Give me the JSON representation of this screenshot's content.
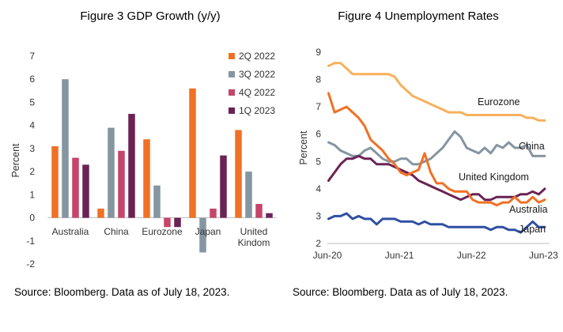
{
  "chart_data": [
    {
      "type": "bar",
      "title": "Figure 3 GDP Growth (y/y)",
      "ylabel": "Percent",
      "ylim": [
        -2,
        7
      ],
      "yticks": [
        "-2",
        "-1",
        "0",
        "1",
        "2",
        "3",
        "4",
        "5",
        "6",
        "7"
      ],
      "categories": [
        "Australia",
        "China",
        "Eurozone",
        "Japan",
        "United Kindom"
      ],
      "category_lines": [
        [
          "Australia"
        ],
        [
          "China"
        ],
        [
          "Eurozone"
        ],
        [
          "Japan"
        ],
        [
          "United",
          "Kindom"
        ]
      ],
      "legend_position": "top-right",
      "series": [
        {
          "name": "2Q 2022",
          "color": "#f07125",
          "values": [
            3.1,
            0.4,
            3.4,
            5.6,
            3.8
          ]
        },
        {
          "name": "3Q 2022",
          "color": "#8595a1",
          "values": [
            6.0,
            3.9,
            1.4,
            -1.5,
            2.0
          ]
        },
        {
          "name": "4Q 2022",
          "color": "#c5456b",
          "values": [
            2.6,
            2.9,
            -0.4,
            0.4,
            0.6
          ]
        },
        {
          "name": "1Q 2023",
          "color": "#6a2354",
          "values": [
            2.3,
            4.5,
            -0.4,
            2.7,
            0.2
          ]
        }
      ],
      "source": "Source: Bloomberg. Data as of July 18, 2023."
    },
    {
      "type": "line",
      "title": "Figure 4 Unemployment Rates",
      "ylabel": "Percent",
      "ylim": [
        2,
        9
      ],
      "yticks": [
        "2",
        "3",
        "4",
        "5",
        "6",
        "7",
        "8",
        "9"
      ],
      "xlim": [
        "2020-06",
        "2023-07"
      ],
      "xticks": [
        {
          "label": "Jun-20",
          "date": "2020-06"
        },
        {
          "label": "Jun-21",
          "date": "2021-06"
        },
        {
          "label": "Jun-22",
          "date": "2022-06"
        },
        {
          "label": "Jun-23",
          "date": "2023-06"
        }
      ],
      "start_date": "2020-06",
      "series": [
        {
          "name": "Eurozone",
          "color": "#f7b05b",
          "values": [
            8.5,
            8.6,
            8.6,
            8.4,
            8.2,
            8.2,
            8.2,
            8.2,
            8.2,
            8.2,
            8.2,
            8.1,
            7.8,
            7.6,
            7.4,
            7.3,
            7.2,
            7.1,
            7.0,
            6.9,
            6.8,
            6.8,
            6.8,
            6.7,
            6.7,
            6.7,
            6.7,
            6.7,
            6.7,
            6.7,
            6.7,
            6.7,
            6.7,
            6.6,
            6.6,
            6.5,
            6.5
          ]
        },
        {
          "name": "China",
          "color": "#8595a1",
          "values": [
            5.7,
            5.6,
            5.4,
            5.3,
            5.2,
            5.2,
            5.4,
            5.5,
            5.3,
            5.1,
            5.0,
            5.0,
            5.1,
            5.1,
            4.9,
            4.9,
            5.0,
            5.1,
            5.3,
            5.5,
            5.8,
            6.1,
            5.9,
            5.5,
            5.4,
            5.3,
            5.5,
            5.3,
            5.6,
            5.5,
            5.7,
            5.5,
            5.5,
            5.6,
            5.2,
            5.2,
            5.2
          ]
        },
        {
          "name": "United Kingdom",
          "color": "#6a2354",
          "values": [
            4.3,
            4.6,
            4.9,
            5.1,
            5.1,
            5.2,
            5.1,
            5.1,
            4.9,
            4.9,
            4.9,
            4.8,
            4.7,
            4.6,
            4.5,
            4.3,
            4.2,
            4.1,
            4.0,
            3.9,
            3.8,
            3.7,
            3.6,
            3.7,
            3.8,
            3.8,
            3.6,
            3.6,
            3.7,
            3.7,
            3.7,
            3.7,
            3.8,
            3.8,
            3.9,
            3.8,
            4.0
          ]
        },
        {
          "name": "Australia",
          "color": "#f07125",
          "values": [
            7.5,
            6.8,
            6.9,
            7.0,
            6.8,
            6.6,
            6.3,
            5.8,
            5.6,
            5.4,
            5.1,
            4.9,
            4.6,
            4.5,
            4.6,
            4.7,
            5.3,
            4.6,
            4.2,
            4.2,
            4.0,
            3.9,
            3.9,
            3.9,
            3.6,
            3.5,
            3.5,
            3.5,
            3.4,
            3.5,
            3.5,
            3.7,
            3.5,
            3.5,
            3.7,
            3.5,
            3.6
          ]
        },
        {
          "name": "Japan",
          "color": "#2f4fa3",
          "values": [
            2.9,
            3.0,
            3.0,
            3.1,
            2.9,
            3.0,
            2.9,
            2.9,
            2.7,
            2.9,
            2.9,
            2.9,
            2.8,
            2.8,
            2.8,
            2.7,
            2.8,
            2.7,
            2.7,
            2.7,
            2.6,
            2.6,
            2.6,
            2.6,
            2.6,
            2.6,
            2.6,
            2.5,
            2.6,
            2.6,
            2.5,
            2.5,
            2.4,
            2.6,
            2.8,
            2.6,
            2.6
          ]
        }
      ],
      "source": "Source: Bloomberg. Data as of July 18, 2023."
    }
  ]
}
